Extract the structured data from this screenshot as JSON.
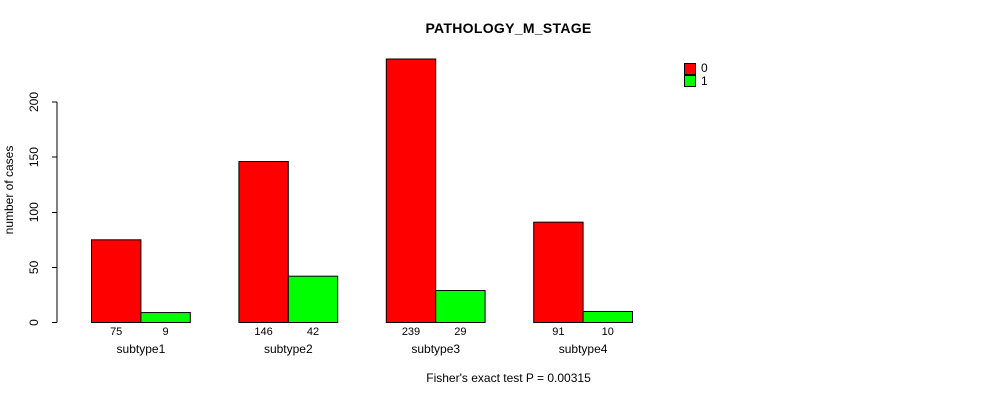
{
  "chart_data": {
    "type": "bar",
    "title": "PATHOLOGY_M_STAGE",
    "categories": [
      "subtype1",
      "subtype2",
      "subtype3",
      "subtype4"
    ],
    "series": [
      {
        "name": "0",
        "color": "#ff0000",
        "values": [
          75,
          146,
          239,
          91
        ]
      },
      {
        "name": "1",
        "color": "#00ff00",
        "values": [
          9,
          42,
          29,
          10
        ]
      }
    ],
    "bar_value_labels": [
      [
        "75",
        "9"
      ],
      [
        "146",
        "42"
      ],
      [
        "239",
        "29"
      ],
      [
        "91",
        "10"
      ]
    ],
    "ylabel": "number of cases",
    "xlabel": "",
    "yticks": [
      0,
      50,
      100,
      150,
      200
    ],
    "ylim": [
      0,
      240
    ],
    "grid": false,
    "legend_position": "top-right",
    "legend_entries": [
      "0",
      "1"
    ],
    "caption": "Fisher's exact test P = 0.00315",
    "colors": {
      "background": "#ffffff",
      "axis": "#000000",
      "bar_border": "#000000",
      "text": "#000000"
    }
  }
}
